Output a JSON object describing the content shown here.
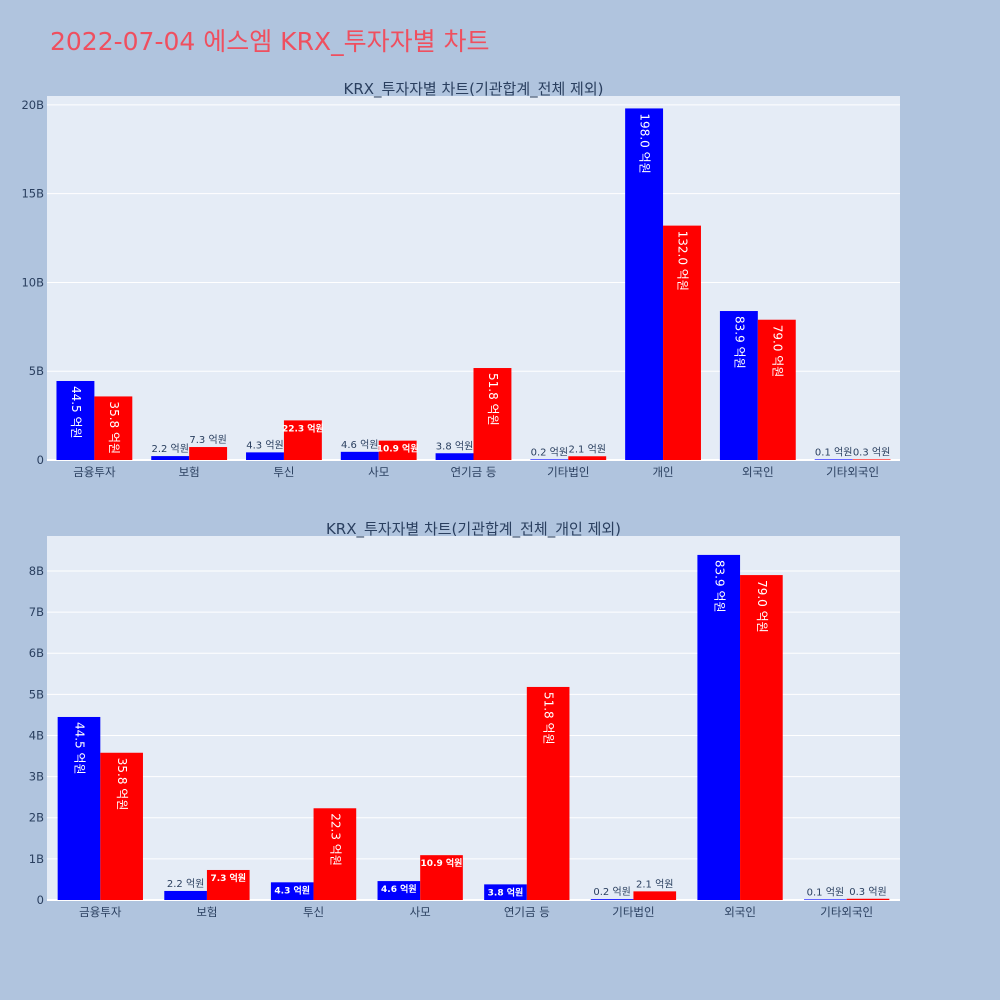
{
  "page_title": "2022-07-04 에스엠 KRX_투자자별 차트",
  "colors": {
    "background": "#b0c4de",
    "plot_bg": "#e5ecf6",
    "series_blue": "#0000ff",
    "series_red": "#ff0000",
    "title": "#ef4f5f",
    "text": "#2a3f5f"
  },
  "chart_data": [
    {
      "type": "bar",
      "title": "KRX_투자자별 차트(기관합계_전체 제외)",
      "categories": [
        "금융투자",
        "보험",
        "투신",
        "사모",
        "연기금 등",
        "기타법인",
        "개인",
        "외국인",
        "기타외국인"
      ],
      "ylim": [
        0,
        20.5
      ],
      "yticks": [
        0,
        5,
        10,
        15,
        20
      ],
      "ytick_labels": [
        "0",
        "5B",
        "10B",
        "15B",
        "20B"
      ],
      "grid": true,
      "series": [
        {
          "color": "#0000ff",
          "values": [
            4.45,
            0.22,
            0.43,
            0.46,
            0.38,
            0.02,
            19.8,
            8.39,
            0.01
          ],
          "labels": [
            "44.5 억원",
            "2.2 억원",
            "4.3 억원",
            "4.6 억원",
            "3.8 억원",
            "0.2 억원",
            "198.0 억원",
            "83.9 억원",
            "0.1 억원"
          ]
        },
        {
          "color": "#ff0000",
          "values": [
            3.58,
            0.73,
            2.23,
            1.09,
            5.18,
            0.21,
            13.2,
            7.9,
            0.03
          ],
          "labels": [
            "35.8 억원",
            "7.3 억원",
            "22.3 억원",
            "10.9 억원",
            "51.8 억원",
            "2.1 억원",
            "132.0 억원",
            "79.0 억원",
            "0.3 억원"
          ]
        }
      ]
    },
    {
      "type": "bar",
      "title": "KRX_투자자별 차트(기관합계_전체_개인 제외)",
      "categories": [
        "금융투자",
        "보험",
        "투신",
        "사모",
        "연기금 등",
        "기타법인",
        "외국인",
        "기타외국인"
      ],
      "ylim": [
        0,
        8.85
      ],
      "yticks": [
        0,
        1,
        2,
        3,
        4,
        5,
        6,
        7,
        8
      ],
      "ytick_labels": [
        "0",
        "1B",
        "2B",
        "3B",
        "4B",
        "5B",
        "6B",
        "7B",
        "8B"
      ],
      "grid": true,
      "series": [
        {
          "color": "#0000ff",
          "values": [
            4.45,
            0.22,
            0.43,
            0.46,
            0.38,
            0.02,
            8.39,
            0.01
          ],
          "labels": [
            "44.5 억원",
            "2.2 억원",
            "4.3 억원",
            "4.6 억원",
            "3.8 억원",
            "0.2 억원",
            "83.9 억원",
            "0.1 억원"
          ]
        },
        {
          "color": "#ff0000",
          "values": [
            3.58,
            0.73,
            2.23,
            1.09,
            5.18,
            0.21,
            7.9,
            0.03
          ],
          "labels": [
            "35.8 억원",
            "7.3 억원",
            "22.3 억원",
            "10.9 억원",
            "51.8 억원",
            "2.1 억원",
            "79.0 억원",
            "0.3 억원"
          ]
        }
      ]
    }
  ]
}
